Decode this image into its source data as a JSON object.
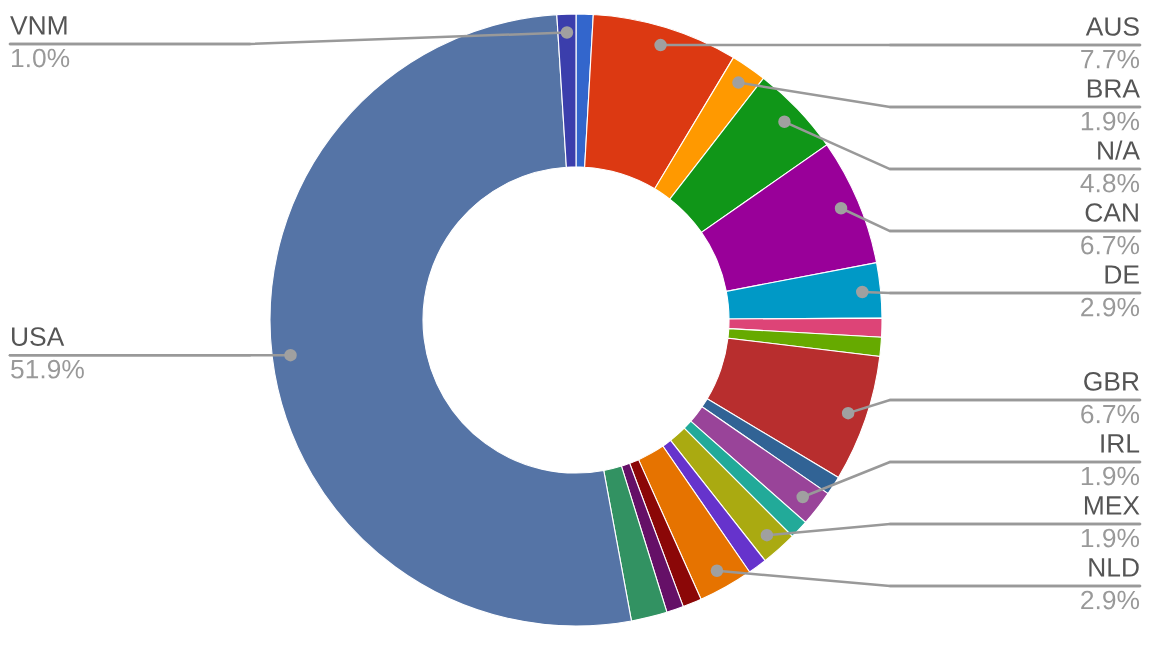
{
  "chart_data": {
    "type": "donut",
    "categories": [
      null,
      "AUS",
      "BRA",
      "N/A",
      "CAN",
      "DE",
      null,
      null,
      "GBR",
      null,
      "IRL",
      null,
      "MEX",
      null,
      "NLD",
      null,
      null,
      null,
      "USA",
      "VNM"
    ],
    "values": [
      0.9,
      7.7,
      1.9,
      4.8,
      6.7,
      2.9,
      1.0,
      1.0,
      6.7,
      1.0,
      1.9,
      1.0,
      1.9,
      1.0,
      2.9,
      1.0,
      0.9,
      1.9,
      51.9,
      1.0
    ],
    "value_labels": [
      null,
      "7.7%",
      "1.9%",
      "4.8%",
      "6.7%",
      "2.9%",
      null,
      null,
      "6.7%",
      null,
      "1.9%",
      null,
      "1.9%",
      null,
      "2.9%",
      null,
      null,
      null,
      "51.9%",
      "1.0%"
    ],
    "colors": [
      "#3366cc",
      "#dc3912",
      "#ff9900",
      "#109618",
      "#990099",
      "#0099c6",
      "#dd4477",
      "#66aa00",
      "#b82e2e",
      "#316395",
      "#994499",
      "#22aa99",
      "#aaaa11",
      "#6633cc",
      "#e67300",
      "#8b0707",
      "#651067",
      "#329262",
      "#5574a6",
      "#3b3eac"
    ]
  }
}
